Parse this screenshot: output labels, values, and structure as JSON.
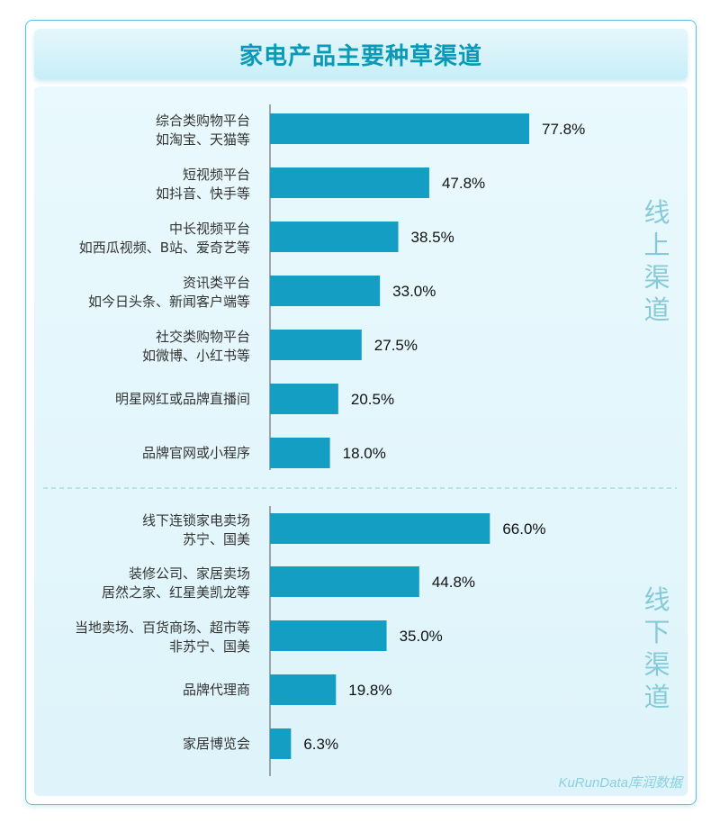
{
  "title": "家电产品主要种草渠道",
  "watermark": "KuRunData库润数据",
  "colors": {
    "bar": "#149ec3",
    "title": "#0a9ab8",
    "group_label": "#86cad8"
  },
  "groups": [
    {
      "name": "线上渠道",
      "chars": [
        "线",
        "上",
        "渠",
        "道"
      ]
    },
    {
      "name": "线下渠道",
      "chars": [
        "线",
        "下",
        "渠",
        "道"
      ]
    }
  ],
  "chart_data": {
    "type": "bar",
    "orientation": "horizontal",
    "xlim": [
      0,
      100
    ],
    "unit": "%",
    "categories": [
      [
        "综合类购物平台",
        "如淘宝、天猫等"
      ],
      [
        "短视频平台",
        "如抖音、快手等"
      ],
      [
        "中长视频平台",
        "如西瓜视频、B站、爱奇艺等"
      ],
      [
        "资讯类平台",
        "如今日头条、新闻客户端等"
      ],
      [
        "社交类购物平台",
        "如微博、小红书等"
      ],
      [
        "明星网红或品牌直播间"
      ],
      [
        "品牌官网或小程序"
      ],
      [
        "线下连锁家电卖场",
        "苏宁、国美"
      ],
      [
        "装修公司、家居卖场",
        "居然之家、红星美凯龙等"
      ],
      [
        "当地卖场、百货商场、超市等",
        "非苏宁、国美"
      ],
      [
        "品牌代理商"
      ],
      [
        "家居博览会"
      ]
    ],
    "values": [
      77.8,
      47.8,
      38.5,
      33.0,
      27.5,
      20.5,
      18.0,
      66.0,
      44.8,
      35.0,
      19.8,
      6.3
    ],
    "value_labels": [
      "77.8%",
      "47.8%",
      "38.5%",
      "33.0%",
      "27.5%",
      "20.5%",
      "18.0%",
      "66.0%",
      "44.8%",
      "35.0%",
      "19.8%",
      "6.3%"
    ],
    "group_of": [
      0,
      0,
      0,
      0,
      0,
      0,
      0,
      1,
      1,
      1,
      1,
      1
    ]
  }
}
